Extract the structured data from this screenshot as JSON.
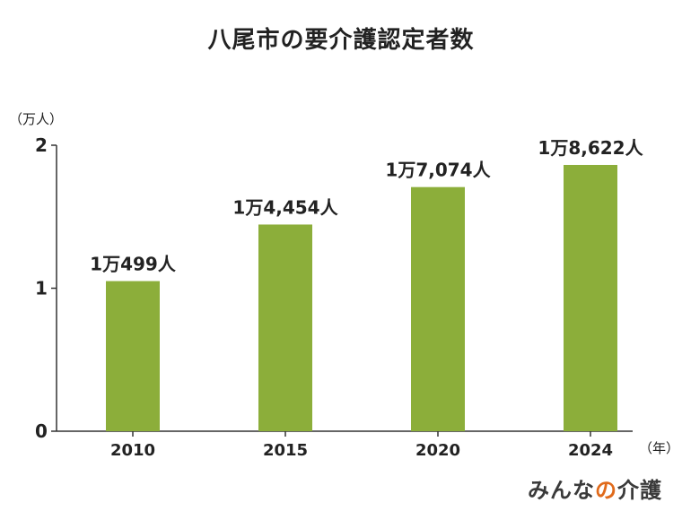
{
  "chart_data": {
    "type": "bar",
    "title": "八尾市の要介護認定者数",
    "y_unit": "（万人）",
    "x_unit": "（年）",
    "categories": [
      "2010",
      "2015",
      "2020",
      "2024"
    ],
    "values": [
      10499,
      14454,
      17074,
      18622
    ],
    "data_labels": [
      "1万499人",
      "1万4,454人",
      "1万7,074人",
      "1万8,622人"
    ],
    "ylim": [
      0,
      20000
    ],
    "yticks": [
      {
        "value": 0,
        "label": "0"
      },
      {
        "value": 10000,
        "label": "1"
      },
      {
        "value": 20000,
        "label": "2"
      }
    ],
    "bar_color": "#8cae3a",
    "grid": false
  },
  "brand": {
    "text_main": "みんな",
    "text_accent": "の",
    "text_end": "介護",
    "accent_color": "#e06a1b"
  }
}
